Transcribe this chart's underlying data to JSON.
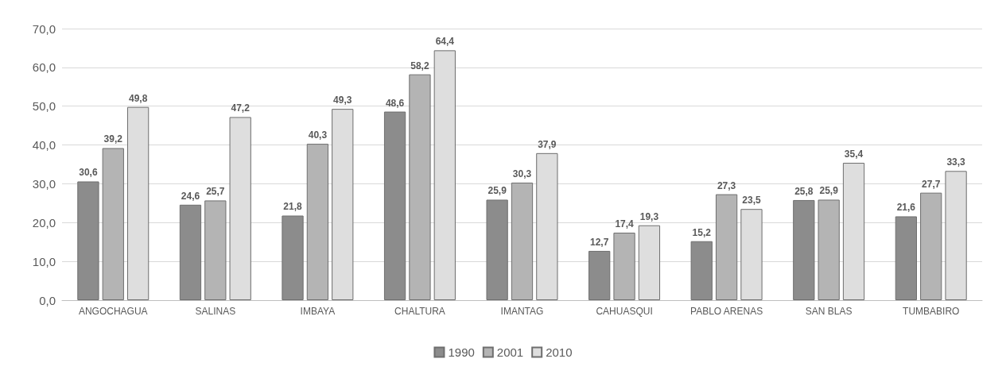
{
  "chart_data": {
    "type": "bar",
    "categories": [
      "ANGOCHAGUA",
      "SALINAS",
      "IMBAYA",
      "CHALTURA",
      "IMANTAG",
      "CAHUASQUI",
      "PABLO ARENAS",
      "SAN BLAS",
      "TUMBABIRO"
    ],
    "series": [
      {
        "name": "1990",
        "color": "#8c8c8c",
        "values": [
          30.6,
          24.6,
          21.8,
          48.6,
          25.9,
          12.7,
          15.2,
          25.8,
          21.6
        ],
        "value_labels": [
          "30,6",
          "24,6",
          "21,8",
          "48,6",
          "25,9",
          "12,7",
          "15,2",
          "25,8",
          "21,6"
        ]
      },
      {
        "name": "2001",
        "color": "#b4b4b4",
        "values": [
          39.2,
          25.7,
          40.3,
          58.2,
          30.3,
          17.4,
          27.3,
          25.9,
          27.7
        ],
        "value_labels": [
          "39,2",
          "25,7",
          "40,3",
          "58,2",
          "30,3",
          "17,4",
          "27,3",
          "25,9",
          "27,7"
        ]
      },
      {
        "name": "2010",
        "color": "#dedede",
        "values": [
          49.8,
          47.2,
          49.3,
          64.4,
          37.9,
          19.3,
          23.5,
          35.4,
          33.3
        ],
        "value_labels": [
          "49,8",
          "47,2",
          "49,3",
          "64,4",
          "37,9",
          "19,3",
          "23,5",
          "35,4",
          "33,3"
        ]
      }
    ],
    "ylim": [
      0,
      70
    ],
    "yticks": [
      {
        "value": 0,
        "label": "0,0"
      },
      {
        "value": 10,
        "label": "10,0"
      },
      {
        "value": 20,
        "label": "20,0"
      },
      {
        "value": 30,
        "label": "30,0"
      },
      {
        "value": 40,
        "label": "40,0"
      },
      {
        "value": 50,
        "label": "50,0"
      },
      {
        "value": 60,
        "label": "60,0"
      },
      {
        "value": 70,
        "label": "70,0"
      }
    ],
    "grid": "y",
    "legend": "bottom"
  }
}
